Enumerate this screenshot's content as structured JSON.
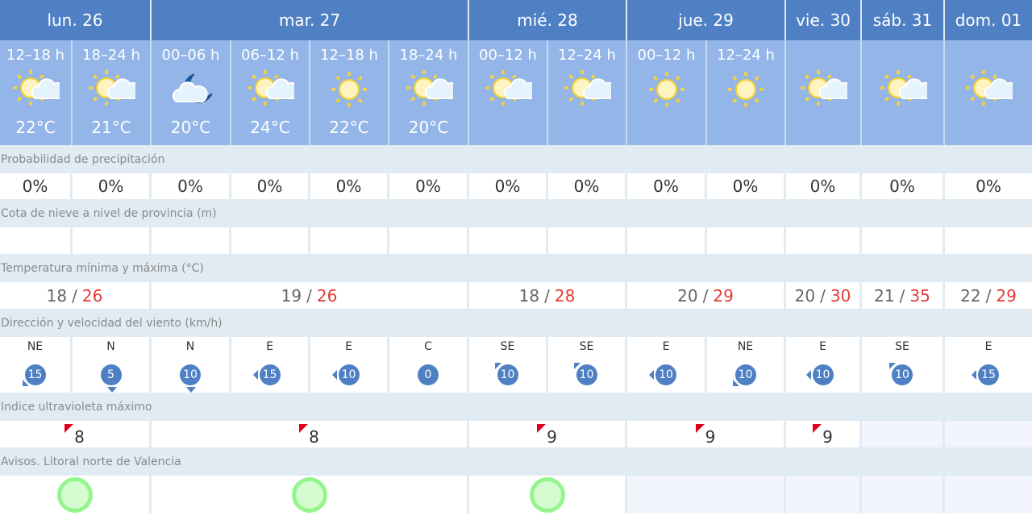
{
  "days": [
    {
      "label": "lun. 26",
      "span": 2
    },
    {
      "label": "mar. 27",
      "span": 4
    },
    {
      "label": "mié. 28",
      "span": 2
    },
    {
      "label": "jue. 29",
      "span": 2
    },
    {
      "label": "vie. 30",
      "span": 1
    },
    {
      "label": "sáb. 31",
      "span": 1
    },
    {
      "label": "dom. 01",
      "span": 1
    }
  ],
  "periods": [
    {
      "label": "12–18 h",
      "icon": "sun-cloud-icon",
      "temp": "22°C"
    },
    {
      "label": "18–24 h",
      "icon": "sun-cloud-icon",
      "temp": "21°C"
    },
    {
      "label": "00–06 h",
      "icon": "moon-cloud-icon",
      "temp": "20°C"
    },
    {
      "label": "06–12 h",
      "icon": "sun-cloud-icon",
      "temp": "24°C"
    },
    {
      "label": "12–18 h",
      "icon": "sun-icon",
      "temp": "22°C"
    },
    {
      "label": "18–24 h",
      "icon": "sun-cloud-icon",
      "temp": "20°C"
    },
    {
      "label": "00–12 h",
      "icon": "sun-cloud-icon",
      "temp": ""
    },
    {
      "label": "12–24 h",
      "icon": "sun-cloud-icon",
      "temp": ""
    },
    {
      "label": "00–12 h",
      "icon": "sun-icon",
      "temp": ""
    },
    {
      "label": "12–24 h",
      "icon": "sun-icon",
      "temp": ""
    },
    {
      "label": "",
      "icon": "sun-cloud-icon",
      "temp": ""
    },
    {
      "label": "",
      "icon": "sun-cloud-icon",
      "temp": ""
    },
    {
      "label": "",
      "icon": "sun-cloud-icon",
      "temp": ""
    }
  ],
  "labels": {
    "precip": "Probabilidad de precipitación",
    "snow": "Cota de nieve a nivel de provincia (m)",
    "temp": "Temperatura mínima y máxima (°C)",
    "wind": "Dirección y velocidad del viento (km/h)",
    "uv": "Indice ultravioleta máximo",
    "avisos": "Avisos. Litoral norte de Valencia"
  },
  "precipitation": [
    "0%",
    "0%",
    "0%",
    "0%",
    "0%",
    "0%",
    "0%",
    "0%",
    "0%",
    "0%",
    "0%",
    "0%",
    "0%"
  ],
  "snow": [
    "",
    "",
    "",
    "",
    "",
    "",
    "",
    "",
    "",
    "",
    "",
    "",
    ""
  ],
  "temps": [
    {
      "min": "18",
      "max": "26"
    },
    {
      "min": "19",
      "max": "26"
    },
    {
      "min": "18",
      "max": "28"
    },
    {
      "min": "20",
      "max": "29"
    },
    {
      "min": "20",
      "max": "30"
    },
    {
      "min": "21",
      "max": "35"
    },
    {
      "min": "22",
      "max": "29"
    }
  ],
  "temp_sep": "/",
  "wind": [
    {
      "dir": "NE",
      "speed": "15"
    },
    {
      "dir": "N",
      "speed": "5"
    },
    {
      "dir": "N",
      "speed": "10"
    },
    {
      "dir": "E",
      "speed": "15"
    },
    {
      "dir": "E",
      "speed": "10"
    },
    {
      "dir": "C",
      "speed": "0"
    },
    {
      "dir": "SE",
      "speed": "10"
    },
    {
      "dir": "SE",
      "speed": "10"
    },
    {
      "dir": "E",
      "speed": "10"
    },
    {
      "dir": "NE",
      "speed": "10"
    },
    {
      "dir": "E",
      "speed": "10"
    },
    {
      "dir": "SE",
      "speed": "10"
    },
    {
      "dir": "E",
      "speed": "15"
    }
  ],
  "uv": [
    "8",
    "8",
    "9",
    "9",
    "9",
    null,
    null
  ],
  "avisos": [
    "green",
    "green",
    "green",
    null,
    null,
    null,
    null
  ],
  "colors": {
    "header": "#4f80c4",
    "periods": "#93b5e8",
    "max_temp": "#e53935",
    "uv_flag": "#e0001b",
    "aviso_green": "#95f58c"
  }
}
